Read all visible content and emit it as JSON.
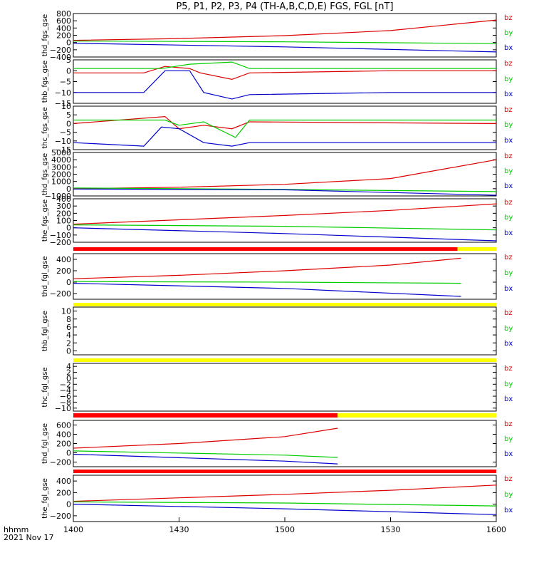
{
  "colors": {
    "bz": "#dd0000",
    "by": "#00cc00",
    "bx": "#0000cc",
    "flag_red": "#ff0000",
    "flag_yellow": "#ffff00",
    "flag_black": "#000000"
  },
  "chart_data": {
    "type": "line",
    "title": "P5, P1, P2, P3, P4 (TH-A,B,C,D,E) FGS, FGL [nT]",
    "x_axis": {
      "range": [
        "14:00",
        "16:00"
      ],
      "ticks": [
        "1400",
        "1430",
        "1500",
        "1530",
        "1600"
      ],
      "label_line1": "hhmm",
      "label_line2": "2021 Nov 17"
    },
    "legend": [
      "bz",
      "by",
      "bx"
    ],
    "panels": [
      {
        "name": "thd_fgs_gse",
        "yticks": [
          "800",
          "600",
          "400",
          "200",
          "0",
          "−200",
          "−400"
        ],
        "ylim": [
          -400,
          800
        ],
        "series": [
          {
            "name": "bz",
            "x": [
              "14:00",
              "14:30",
              "15:00",
              "15:30",
              "16:00"
            ],
            "y": [
              60,
              110,
              190,
              330,
              620
            ]
          },
          {
            "name": "by",
            "x": [
              "14:00",
              "15:00",
              "16:00"
            ],
            "y": [
              40,
              20,
              -30
            ]
          },
          {
            "name": "bx",
            "x": [
              "14:00",
              "15:00",
              "16:00"
            ],
            "y": [
              -20,
              -120,
              -260
            ]
          }
        ]
      },
      {
        "name": "thb_fgs_gse",
        "yticks": [
          "5",
          "0",
          "−5",
          "−10",
          "−15"
        ],
        "ylim": [
          -15,
          5
        ],
        "series": [
          {
            "name": "bz",
            "x": [
              "14:00",
              "14:20",
              "14:26",
              "14:33",
              "14:36",
              "14:45",
              "14:50",
              "15:30",
              "16:00"
            ],
            "y": [
              -1,
              -1,
              2,
              1,
              -1,
              -4,
              -1,
              0,
              0
            ]
          },
          {
            "name": "by",
            "x": [
              "14:00",
              "14:25",
              "14:33",
              "14:45",
              "14:50",
              "15:30",
              "16:00"
            ],
            "y": [
              1,
              1,
              3,
              4,
              1,
              1,
              1
            ]
          },
          {
            "name": "bx",
            "x": [
              "14:00",
              "14:20",
              "14:26",
              "14:33",
              "14:37",
              "14:45",
              "14:50",
              "15:30",
              "16:00"
            ],
            "y": [
              -10,
              -10,
              0,
              0,
              -10,
              -13,
              -11,
              -10,
              -10
            ]
          }
        ]
      },
      {
        "name": "thc_fgs_gse",
        "yticks": [
          "10",
          "5",
          "0",
          "−5",
          "−10",
          "−15"
        ],
        "ylim": [
          -15,
          10
        ],
        "series": [
          {
            "name": "bz",
            "x": [
              "14:00",
              "14:26",
              "14:30",
              "14:37",
              "14:45",
              "14:50",
              "16:00"
            ],
            "y": [
              0,
              4,
              -3,
              -1,
              -3,
              1,
              0
            ]
          },
          {
            "name": "by",
            "x": [
              "14:00",
              "14:26",
              "14:30",
              "14:37",
              "14:46",
              "14:50",
              "16:00"
            ],
            "y": [
              2,
              2,
              -1,
              1,
              -8,
              2,
              2
            ]
          },
          {
            "name": "bx",
            "x": [
              "14:00",
              "14:20",
              "14:25",
              "14:30",
              "14:37",
              "14:45",
              "14:50",
              "15:30",
              "16:00"
            ],
            "y": [
              -11,
              -13,
              -2,
              -3,
              -11,
              -13,
              -11,
              -11,
              -11
            ]
          }
        ]
      },
      {
        "name": "thd_fgs_gse",
        "yticks": [
          "5000",
          "4000",
          "3000",
          "2000",
          "1000",
          "0",
          "−1000"
        ],
        "ylim": [
          -1000,
          5000
        ],
        "series": [
          {
            "name": "bz",
            "x": [
              "14:00",
              "14:30",
              "15:00",
              "15:30",
              "16:00"
            ],
            "y": [
              0,
              200,
              600,
              1400,
              4000
            ]
          },
          {
            "name": "by",
            "x": [
              "14:00",
              "15:00",
              "16:00"
            ],
            "y": [
              100,
              -100,
              -400
            ]
          },
          {
            "name": "bx",
            "x": [
              "14:00",
              "15:00",
              "16:00"
            ],
            "y": [
              -50,
              -150,
              -900
            ]
          }
        ]
      },
      {
        "name": "the_fgs_gse",
        "yticks": [
          "400",
          "300",
          "200",
          "100",
          "0",
          "−100",
          "−200"
        ],
        "ylim": [
          -200,
          400
        ],
        "series": [
          {
            "name": "bz",
            "x": [
              "14:00",
              "14:30",
              "15:00",
              "15:30",
              "16:00"
            ],
            "y": [
              50,
              110,
              170,
              240,
              330
            ]
          },
          {
            "name": "by",
            "x": [
              "14:00",
              "15:00",
              "16:00"
            ],
            "y": [
              40,
              20,
              -30
            ]
          },
          {
            "name": "bx",
            "x": [
              "14:00",
              "15:00",
              "16:00"
            ],
            "y": [
              0,
              -80,
              -180
            ]
          }
        ]
      },
      {
        "name": "thd_fgl_gse",
        "yticks": [
          "400",
          "200",
          "0",
          "−200"
        ],
        "ylim": [
          -300,
          500
        ],
        "series": [
          {
            "name": "bz",
            "x": [
              "14:00",
              "14:30",
              "15:00",
              "15:30",
              "15:50"
            ],
            "y": [
              60,
              120,
              200,
              300,
              420
            ]
          },
          {
            "name": "by",
            "x": [
              "14:00",
              "15:00",
              "15:50"
            ],
            "y": [
              10,
              0,
              -20
            ]
          },
          {
            "name": "bx",
            "x": [
              "14:00",
              "15:00",
              "15:50"
            ],
            "y": [
              -20,
              -110,
              -250
            ]
          }
        ]
      },
      {
        "name": "thb_fgl_gse",
        "yticks": [
          "10",
          "8",
          "6",
          "4",
          "2",
          "0"
        ],
        "ylim": [
          -1,
          11
        ],
        "series": []
      },
      {
        "name": "thc_fgl_gse",
        "yticks": [
          "4",
          "2",
          "0",
          "−2",
          "−4",
          "−6",
          "−8",
          "−10"
        ],
        "ylim": [
          -11,
          5
        ],
        "series": []
      },
      {
        "name": "thd_fgl_gse",
        "yticks": [
          "600",
          "400",
          "200",
          "0",
          "−200"
        ],
        "ylim": [
          -300,
          700
        ],
        "series": [
          {
            "name": "bz",
            "x": [
              "14:00",
              "14:30",
              "15:00",
              "15:15"
            ],
            "y": [
              100,
              200,
              350,
              530
            ]
          },
          {
            "name": "by",
            "x": [
              "14:00",
              "15:00",
              "15:15"
            ],
            "y": [
              40,
              -50,
              -100
            ]
          },
          {
            "name": "bx",
            "x": [
              "14:00",
              "15:00",
              "15:15"
            ],
            "y": [
              -30,
              -180,
              -240
            ]
          }
        ]
      },
      {
        "name": "the_fgl_gse",
        "yticks": [
          "400",
          "200",
          "0",
          "−200"
        ],
        "ylim": [
          -300,
          500
        ],
        "series": [
          {
            "name": "bz",
            "x": [
              "14:00",
              "14:30",
              "15:00",
              "15:30",
              "16:00"
            ],
            "y": [
              50,
              110,
              170,
              240,
              330
            ]
          },
          {
            "name": "by",
            "x": [
              "14:00",
              "15:00",
              "16:00"
            ],
            "y": [
              40,
              20,
              -30
            ]
          },
          {
            "name": "bx",
            "x": [
              "14:00",
              "15:00",
              "16:00"
            ],
            "y": [
              0,
              -80,
              -180
            ]
          }
        ]
      }
    ],
    "flag_bars": [
      {
        "segments": [
          {
            "color": "red",
            "from": "14:00",
            "to": "15:49"
          },
          {
            "color": "yellow",
            "from": "15:49",
            "to": "16:00"
          }
        ]
      },
      {
        "segments": [
          {
            "color": "yellow",
            "from": "14:00",
            "to": "16:00"
          }
        ]
      },
      {
        "segments": [
          {
            "color": "yellow",
            "from": "14:00",
            "to": "16:00"
          }
        ]
      },
      {
        "segments": [
          {
            "color": "red",
            "from": "14:00",
            "to": "15:15"
          },
          {
            "color": "yellow",
            "from": "15:15",
            "to": "16:00"
          }
        ]
      },
      {
        "segments": [
          {
            "color": "red",
            "from": "14:00",
            "to": "16:00"
          }
        ]
      }
    ]
  }
}
